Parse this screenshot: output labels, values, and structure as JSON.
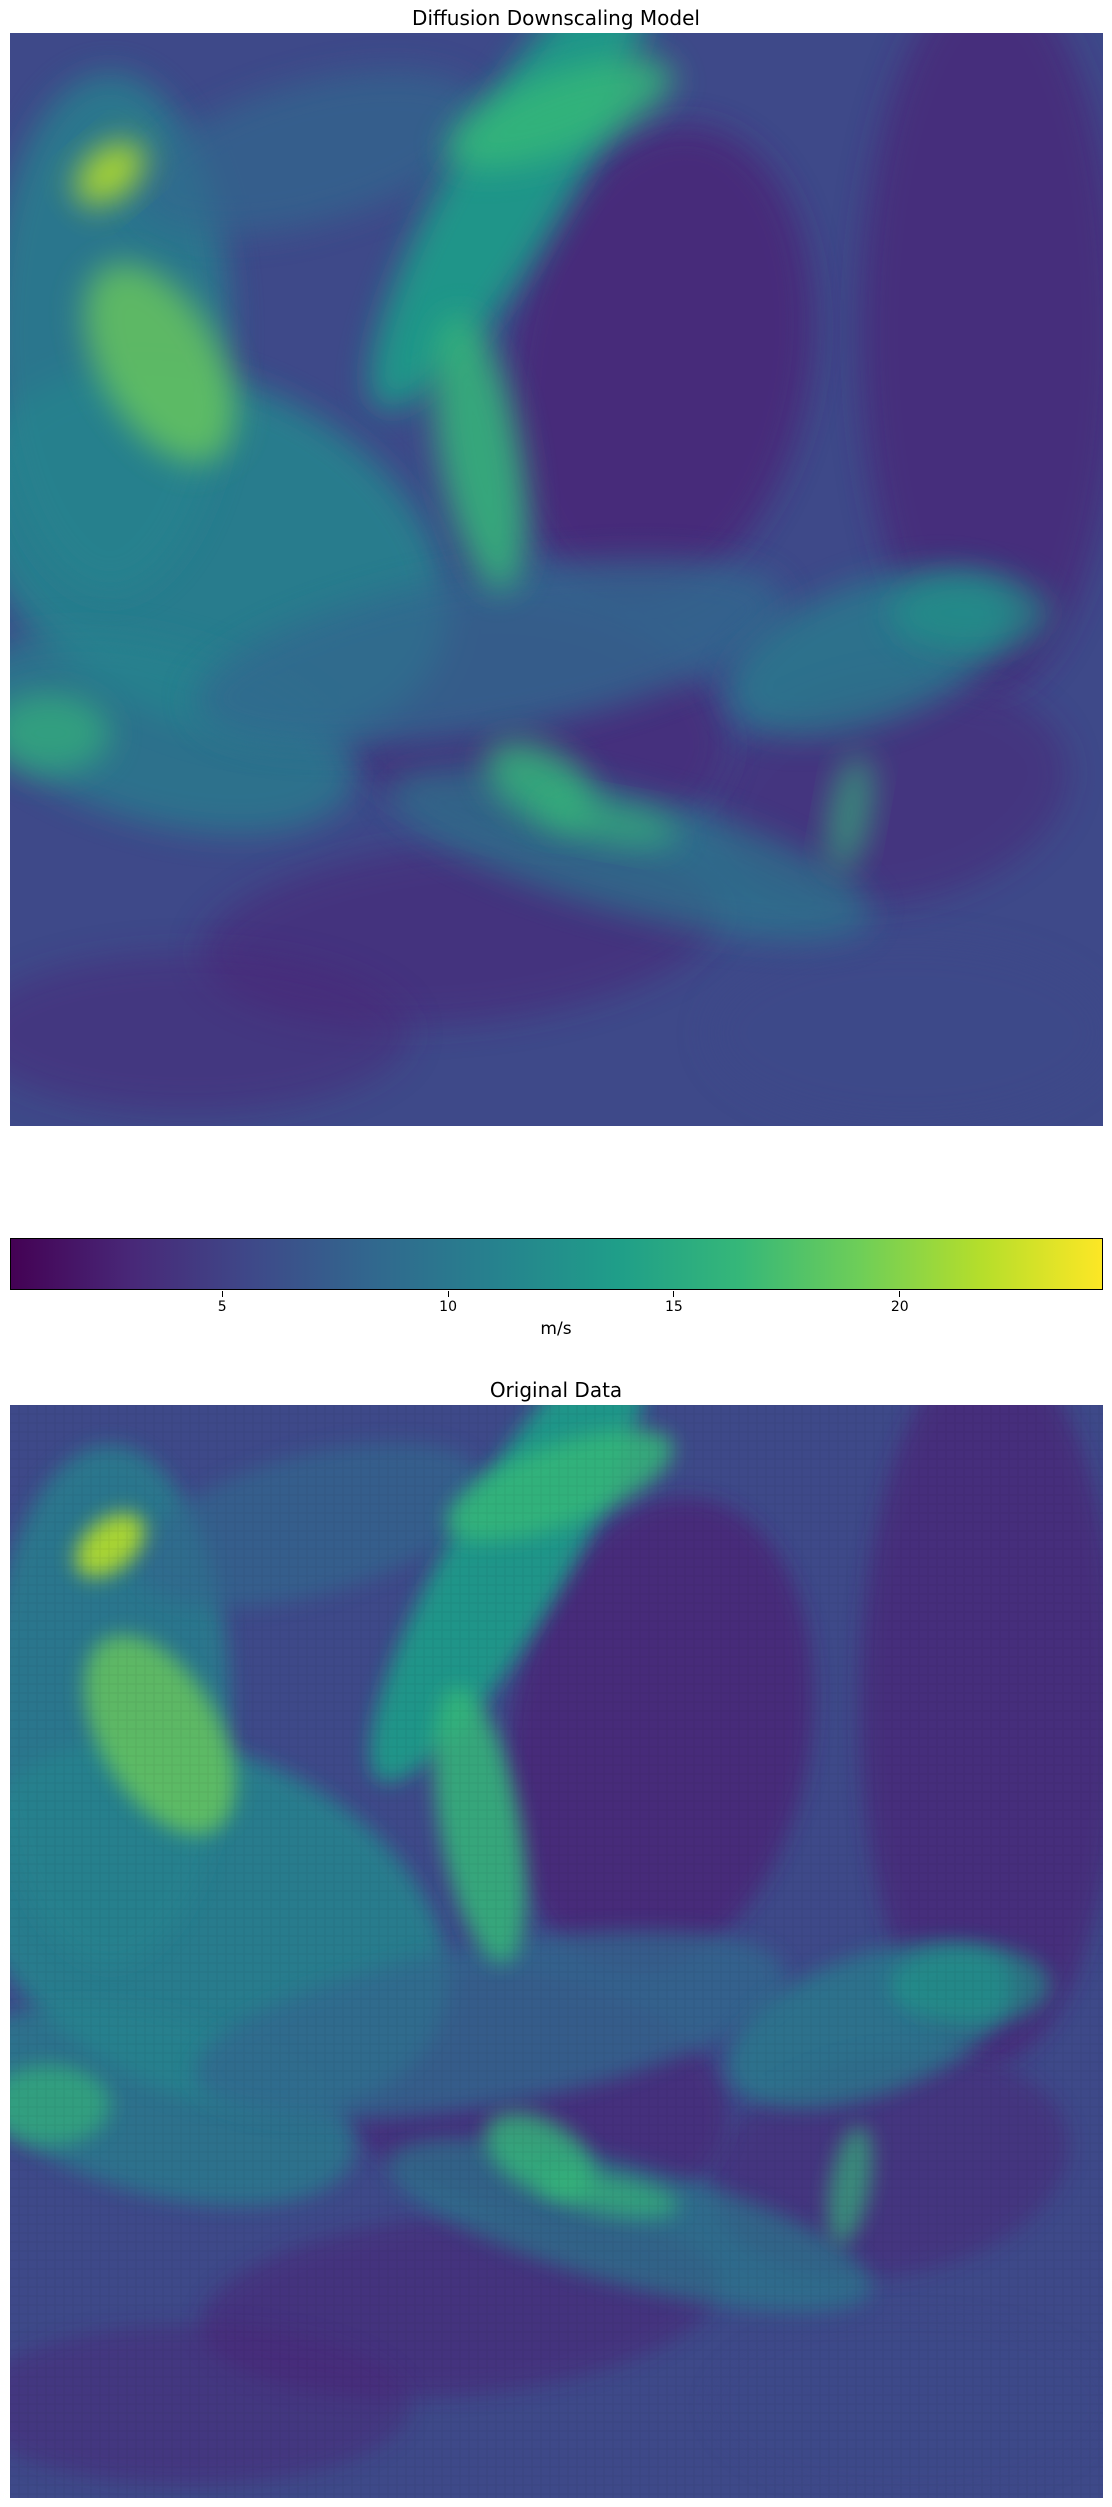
{
  "chart_data": [
    {
      "type": "heatmap",
      "title": "Diffusion Downscaling Model",
      "xlabel": "",
      "ylabel": "",
      "colormap": "viridis",
      "value_range": [
        0.3,
        24.5
      ],
      "unit": "m/s",
      "axes_visible": false,
      "content": "gridded wind speed over the North Atlantic and Europe (high resolution, smooth)"
    },
    {
      "type": "heatmap",
      "title": "Original Data",
      "xlabel": "",
      "ylabel": "",
      "colormap": "viridis",
      "value_range": [
        0.3,
        24.5
      ],
      "unit": "m/s",
      "axes_visible": false,
      "content": "gridded wind speed over the North Atlantic and Europe (coarse, blocky artifacts)"
    }
  ],
  "colorbar": {
    "label": "m/s",
    "min": 0.3,
    "max": 24.5,
    "ticks": [
      5,
      10,
      15,
      20
    ],
    "tick_labels": [
      "5",
      "10",
      "15",
      "20"
    ],
    "orientation": "horizontal",
    "colormap": "viridis",
    "colors": [
      "#440154",
      "#482878",
      "#3e4989",
      "#31688e",
      "#26828e",
      "#1f9e89",
      "#35b779",
      "#6ece58",
      "#b5de2b",
      "#fde725"
    ]
  },
  "colors": {
    "background": "#ffffff",
    "frame": "#000000"
  }
}
